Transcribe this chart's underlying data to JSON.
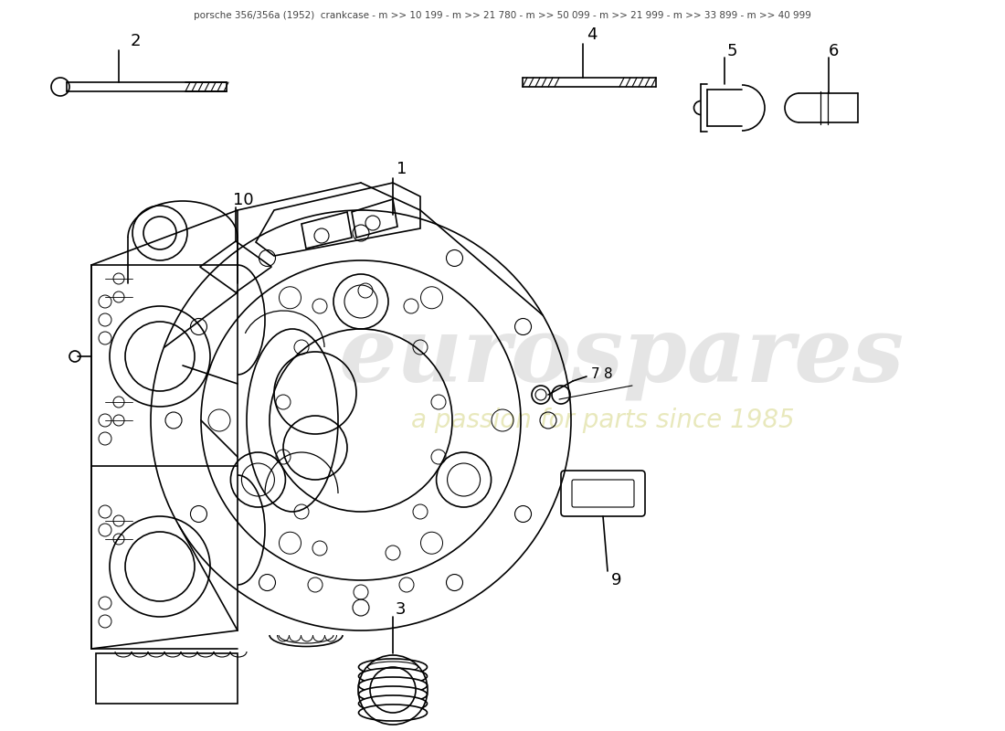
{
  "title": "porsche 356/356a (1952)  crankcase - m >> 10 199 - m >> 21 780 - m >> 50 099 - m >> 21 999 - m >> 33 899 - m >> 40 999",
  "bg": "#ffffff",
  "lw": 1.2,
  "color": "#000000",
  "wm1": "eurospares",
  "wm2": "a passion for parts since 1985",
  "figw": 11.0,
  "figh": 8.0,
  "dpi": 100
}
